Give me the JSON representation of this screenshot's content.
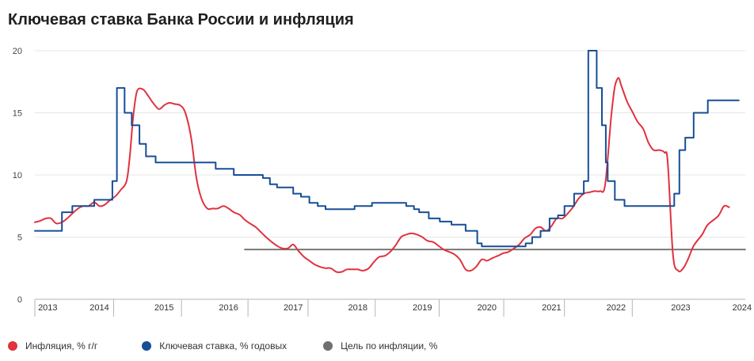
{
  "header": {
    "title": "Ключевая ставка Банка России и инфляция"
  },
  "colors": {
    "inflation": "#e0323f",
    "key_rate": "#174e97",
    "target": "#707070",
    "grid": "#e6e6e6",
    "axis": "#b5b5b5"
  },
  "legend": [
    {
      "label": "Инфляция, % г/г",
      "color": "#e0323f"
    },
    {
      "label": "Ключевая ставка, % годовых",
      "color": "#174e97"
    },
    {
      "label": "Цель по инфляции, %",
      "color": "#707070"
    }
  ],
  "chart_data": {
    "type": "line",
    "title": "Ключевая ставка Банка России и инфляция",
    "xlim": [
      2013.0,
      2024.0
    ],
    "ylim": [
      0,
      20
    ],
    "y_ticks": [
      "0",
      "5",
      "10",
      "15",
      "20"
    ],
    "x_tick_labels": [
      {
        "label": "2013",
        "x": 2013.2
      },
      {
        "label": "2014",
        "x": 2014.0
      },
      {
        "label": "2015",
        "x": 2015.0
      },
      {
        "label": "2016",
        "x": 2016.0
      },
      {
        "label": "2017",
        "x": 2017.0
      },
      {
        "label": "2018",
        "x": 2018.0
      },
      {
        "label": "2019",
        "x": 2019.0
      },
      {
        "label": "2020",
        "x": 2020.0
      },
      {
        "label": "2021",
        "x": 2021.0
      },
      {
        "label": "2022",
        "x": 2022.0
      },
      {
        "label": "2023",
        "x": 2023.0
      },
      {
        "label": "2024",
        "x": 2023.95
      }
    ],
    "x_separators": [
      2014.22,
      2015.27,
      2016.3,
      2017.23,
      2018.27,
      2019.26,
      2020.26,
      2021.2,
      2022.25
    ],
    "grid": true,
    "legend_position": "bottom",
    "series": [
      {
        "name": "Инфляция, % г/г",
        "key": "inflation",
        "line": "smooth",
        "points": [
          [
            2013.0,
            6.2
          ],
          [
            2013.08,
            6.3
          ],
          [
            2013.17,
            6.5
          ],
          [
            2013.25,
            6.5
          ],
          [
            2013.33,
            6.1
          ],
          [
            2013.42,
            6.2
          ],
          [
            2013.5,
            6.5
          ],
          [
            2013.58,
            6.9
          ],
          [
            2013.67,
            7.3
          ],
          [
            2013.75,
            7.5
          ],
          [
            2013.83,
            7.5
          ],
          [
            2013.92,
            7.8
          ],
          [
            2014.0,
            7.5
          ],
          [
            2014.08,
            7.6
          ],
          [
            2014.17,
            8.0
          ],
          [
            2014.25,
            8.3
          ],
          [
            2014.33,
            8.8
          ],
          [
            2014.42,
            9.5
          ],
          [
            2014.47,
            11.5
          ],
          [
            2014.52,
            14.5
          ],
          [
            2014.58,
            16.7
          ],
          [
            2014.67,
            16.9
          ],
          [
            2014.75,
            16.4
          ],
          [
            2014.83,
            15.8
          ],
          [
            2014.92,
            15.3
          ],
          [
            2015.0,
            15.6
          ],
          [
            2015.08,
            15.8
          ],
          [
            2015.17,
            15.7
          ],
          [
            2015.25,
            15.6
          ],
          [
            2015.33,
            15.0
          ],
          [
            2015.42,
            13.0
          ],
          [
            2015.5,
            9.8
          ],
          [
            2015.58,
            8.1
          ],
          [
            2015.67,
            7.3
          ],
          [
            2015.75,
            7.3
          ],
          [
            2015.83,
            7.3
          ],
          [
            2015.92,
            7.5
          ],
          [
            2016.0,
            7.3
          ],
          [
            2016.08,
            7.0
          ],
          [
            2016.17,
            6.8
          ],
          [
            2016.25,
            6.4
          ],
          [
            2016.33,
            6.1
          ],
          [
            2016.42,
            5.8
          ],
          [
            2016.5,
            5.4
          ],
          [
            2016.58,
            5.0
          ],
          [
            2016.67,
            4.6
          ],
          [
            2016.75,
            4.3
          ],
          [
            2016.83,
            4.1
          ],
          [
            2016.92,
            4.1
          ],
          [
            2017.0,
            4.4
          ],
          [
            2017.08,
            3.9
          ],
          [
            2017.17,
            3.4
          ],
          [
            2017.25,
            3.1
          ],
          [
            2017.33,
            2.8
          ],
          [
            2017.42,
            2.6
          ],
          [
            2017.5,
            2.5
          ],
          [
            2017.58,
            2.5
          ],
          [
            2017.67,
            2.2
          ],
          [
            2017.75,
            2.2
          ],
          [
            2017.83,
            2.4
          ],
          [
            2017.92,
            2.4
          ],
          [
            2018.0,
            2.4
          ],
          [
            2018.08,
            2.3
          ],
          [
            2018.17,
            2.5
          ],
          [
            2018.25,
            3.0
          ],
          [
            2018.33,
            3.4
          ],
          [
            2018.42,
            3.5
          ],
          [
            2018.5,
            3.8
          ],
          [
            2018.58,
            4.3
          ],
          [
            2018.67,
            5.0
          ],
          [
            2018.75,
            5.2
          ],
          [
            2018.83,
            5.3
          ],
          [
            2018.92,
            5.2
          ],
          [
            2019.0,
            5.0
          ],
          [
            2019.08,
            4.7
          ],
          [
            2019.17,
            4.6
          ],
          [
            2019.25,
            4.3
          ],
          [
            2019.33,
            4.0
          ],
          [
            2019.42,
            3.8
          ],
          [
            2019.5,
            3.6
          ],
          [
            2019.58,
            3.2
          ],
          [
            2019.67,
            2.4
          ],
          [
            2019.75,
            2.3
          ],
          [
            2019.83,
            2.6
          ],
          [
            2019.92,
            3.2
          ],
          [
            2020.0,
            3.1
          ],
          [
            2020.08,
            3.3
          ],
          [
            2020.17,
            3.5
          ],
          [
            2020.25,
            3.7
          ],
          [
            2020.33,
            3.8
          ],
          [
            2020.42,
            4.1
          ],
          [
            2020.5,
            4.4
          ],
          [
            2020.58,
            4.9
          ],
          [
            2020.67,
            5.2
          ],
          [
            2020.75,
            5.7
          ],
          [
            2020.83,
            5.8
          ],
          [
            2020.92,
            5.5
          ],
          [
            2021.0,
            5.9
          ],
          [
            2021.08,
            6.5
          ],
          [
            2021.17,
            6.5
          ],
          [
            2021.25,
            6.9
          ],
          [
            2021.33,
            7.4
          ],
          [
            2021.42,
            8.1
          ],
          [
            2021.5,
            8.5
          ],
          [
            2021.58,
            8.6
          ],
          [
            2021.67,
            8.7
          ],
          [
            2021.75,
            8.7
          ],
          [
            2021.83,
            9.2
          ],
          [
            2021.92,
            14.5
          ],
          [
            2021.97,
            16.8
          ],
          [
            2022.0,
            17.5
          ],
          [
            2022.04,
            17.8
          ],
          [
            2022.08,
            17.2
          ],
          [
            2022.17,
            15.9
          ],
          [
            2022.25,
            15.1
          ],
          [
            2022.33,
            14.3
          ],
          [
            2022.42,
            13.7
          ],
          [
            2022.5,
            12.6
          ],
          [
            2022.58,
            12.0
          ],
          [
            2022.67,
            12.0
          ],
          [
            2022.75,
            11.8
          ],
          [
            2022.8,
            11.0
          ],
          [
            2022.88,
            3.6
          ],
          [
            2022.96,
            2.3
          ],
          [
            2023.04,
            2.5
          ],
          [
            2023.12,
            3.3
          ],
          [
            2023.2,
            4.3
          ],
          [
            2023.33,
            5.2
          ],
          [
            2023.42,
            6.0
          ],
          [
            2023.58,
            6.7
          ],
          [
            2023.67,
            7.5
          ],
          [
            2023.75,
            7.4
          ]
        ]
      },
      {
        "name": "Ключевая ставка, % годовых",
        "key": "key_rate",
        "line": "step",
        "points": [
          [
            2013.0,
            5.5
          ],
          [
            2013.42,
            7.0
          ],
          [
            2013.58,
            7.5
          ],
          [
            2013.92,
            8.0
          ],
          [
            2014.2,
            9.5
          ],
          [
            2014.27,
            17.0
          ],
          [
            2014.39,
            15.0
          ],
          [
            2014.5,
            14.0
          ],
          [
            2014.62,
            12.5
          ],
          [
            2014.72,
            11.5
          ],
          [
            2014.87,
            11.0
          ],
          [
            2015.8,
            10.5
          ],
          [
            2016.08,
            10.0
          ],
          [
            2016.53,
            9.75
          ],
          [
            2016.64,
            9.25
          ],
          [
            2016.75,
            9.0
          ],
          [
            2017.0,
            8.5
          ],
          [
            2017.12,
            8.25
          ],
          [
            2017.25,
            7.75
          ],
          [
            2017.38,
            7.5
          ],
          [
            2017.5,
            7.25
          ],
          [
            2017.95,
            7.5
          ],
          [
            2018.22,
            7.75
          ],
          [
            2018.75,
            7.5
          ],
          [
            2018.87,
            7.25
          ],
          [
            2018.95,
            7.0
          ],
          [
            2019.1,
            6.5
          ],
          [
            2019.27,
            6.25
          ],
          [
            2019.45,
            6.0
          ],
          [
            2019.67,
            5.5
          ],
          [
            2019.85,
            4.5
          ],
          [
            2019.92,
            4.25
          ],
          [
            2020.6,
            4.5
          ],
          [
            2020.7,
            5.0
          ],
          [
            2020.83,
            5.5
          ],
          [
            2020.97,
            6.5
          ],
          [
            2021.1,
            6.75
          ],
          [
            2021.2,
            7.5
          ],
          [
            2021.35,
            8.5
          ],
          [
            2021.5,
            9.5
          ],
          [
            2021.57,
            20.0
          ],
          [
            2021.7,
            17.0
          ],
          [
            2021.78,
            14.0
          ],
          [
            2021.84,
            11.0
          ],
          [
            2021.87,
            9.5
          ],
          [
            2021.98,
            8.0
          ],
          [
            2022.13,
            7.5
          ],
          [
            2022.9,
            8.5
          ],
          [
            2022.98,
            12.0
          ],
          [
            2023.07,
            13.0
          ],
          [
            2023.2,
            15.0
          ],
          [
            2023.42,
            16.0
          ],
          [
            2023.9,
            16.0
          ]
        ]
      },
      {
        "name": "Цель по инфляции, %",
        "key": "target",
        "line": "flat",
        "points": [
          [
            2016.25,
            4.0
          ],
          [
            2024.0,
            4.0
          ]
        ]
      }
    ]
  }
}
